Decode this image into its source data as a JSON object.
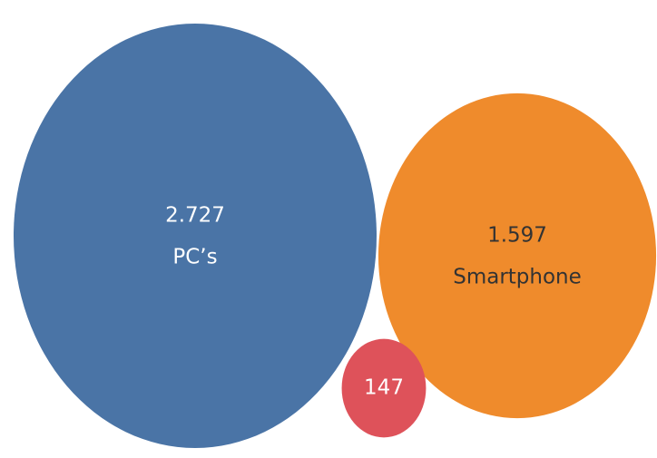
{
  "chart_data": {
    "type": "bubble",
    "categories": [
      "PC’s",
      "Smartphone",
      null
    ],
    "values": [
      2727,
      1597,
      147
    ],
    "value_labels": [
      "2.727",
      "1.597",
      "147"
    ],
    "colors": [
      "#4a74a6",
      "#ef8b2c",
      "#de525a"
    ]
  }
}
